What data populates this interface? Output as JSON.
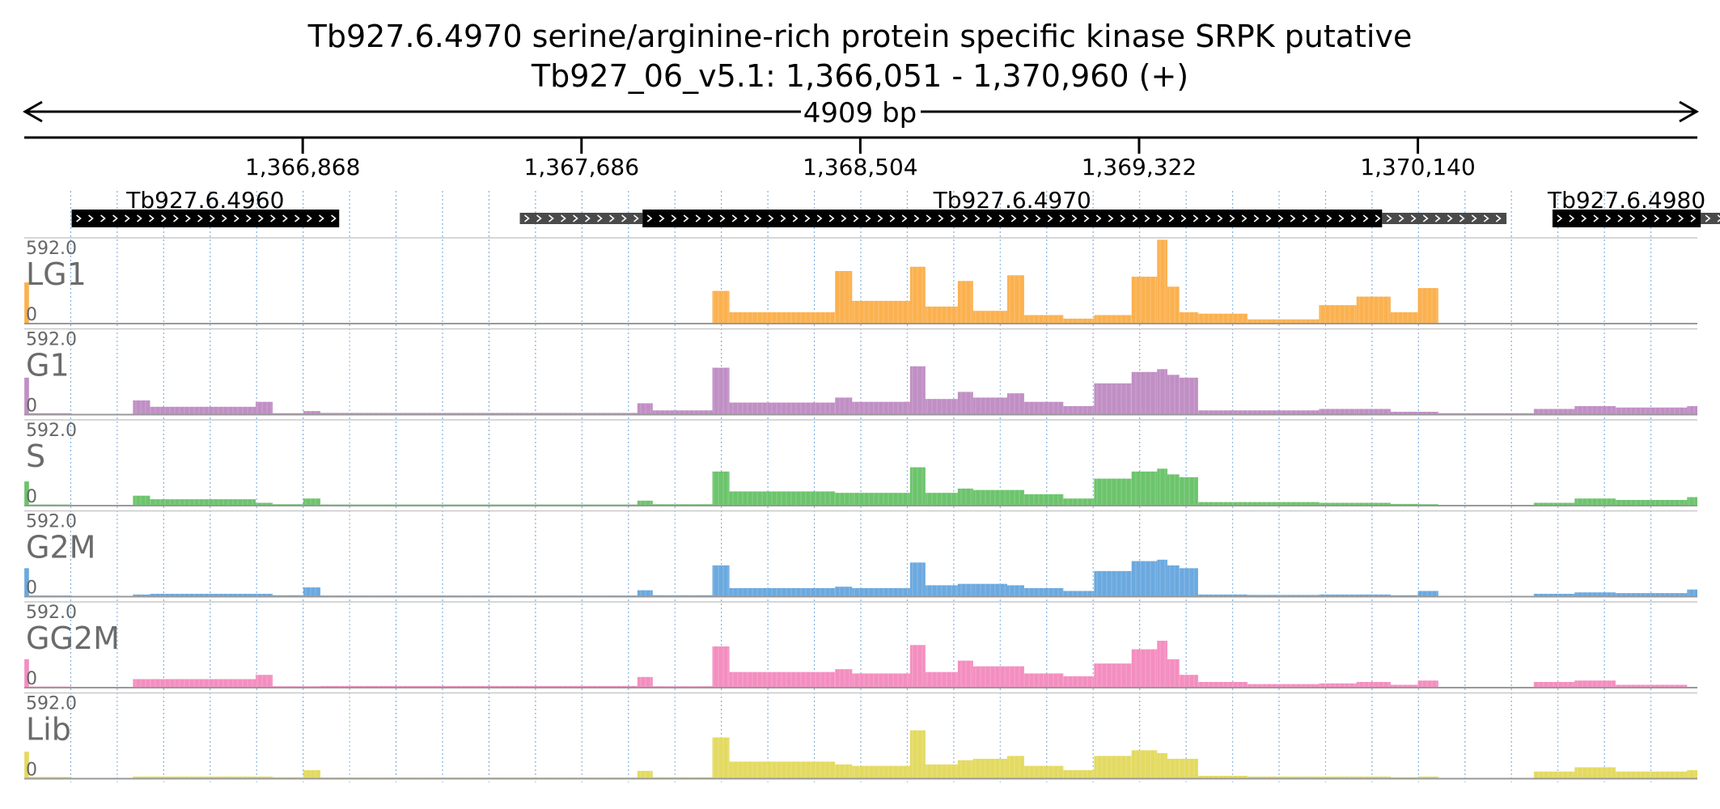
{
  "chart_data": {
    "type": "area",
    "title": "Tb927.6.4970  serine/arginine-rich protein specific kinase SRPK  putative",
    "subtitle": "Tb927_06_v5.1: 1,366,051 - 1,370,960 (+)",
    "span_label": "4909 bp",
    "xlim": [
      1366051,
      1370960
    ],
    "x_ticks": [
      {
        "pos": 1366868,
        "label": "1,366,868"
      },
      {
        "pos": 1367686,
        "label": "1,367,686"
      },
      {
        "pos": 1368504,
        "label": "1,368,504"
      },
      {
        "pos": 1369322,
        "label": "1,369,322"
      },
      {
        "pos": 1370140,
        "label": "1,370,140"
      }
    ],
    "genes": [
      {
        "name": "Tb927.6.4960",
        "cds": [
          1366190,
          1366975
        ],
        "utr": []
      },
      {
        "name": "Tb927.6.4970",
        "cds": [
          1367865,
          1370035
        ],
        "utr": [
          [
            1367505,
            1367865
          ],
          [
            1370035,
            1370400
          ]
        ]
      },
      {
        "name": "Tb927.6.4980",
        "cds": [
          1370535,
          1370970
        ],
        "utr": [
          [
            1370970,
            1371045
          ]
        ]
      }
    ],
    "track_max_label": "592.0",
    "track_min_label": "0",
    "ylim": [
      0,
      592
    ],
    "tracks": [
      {
        "name": "LG1",
        "color": "#fbb14f"
      },
      {
        "name": "G1",
        "color": "#c08fc4"
      },
      {
        "name": "S",
        "color": "#6cc46c"
      },
      {
        "name": "G2M",
        "color": "#6ba9df"
      },
      {
        "name": "GG2M",
        "color": "#f48ec0"
      },
      {
        "name": "Lib",
        "color": "#e3da62"
      }
    ],
    "segments": [
      {
        "x": [
          1366051,
          1366065
        ],
        "v": {
          "LG1": 290,
          "G1": 260,
          "S": 170,
          "G2M": 200,
          "GG2M": 200,
          "Lib": 190
        }
      },
      {
        "x": [
          1366065,
          1366190
        ],
        "v": {
          "LG1": 0,
          "G1": 10,
          "S": 8,
          "G2M": 8,
          "GG2M": 8,
          "Lib": 12
        }
      },
      {
        "x": [
          1366370,
          1366420
        ],
        "v": {
          "LG1": 0,
          "G1": 100,
          "S": 70,
          "G2M": 15,
          "GG2M": 60,
          "Lib": 15
        }
      },
      {
        "x": [
          1366420,
          1366730
        ],
        "v": {
          "LG1": 0,
          "G1": 55,
          "S": 45,
          "G2M": 20,
          "GG2M": 60,
          "Lib": 15
        }
      },
      {
        "x": [
          1366730,
          1366780
        ],
        "v": {
          "LG1": 0,
          "G1": 90,
          "S": 20,
          "G2M": 20,
          "GG2M": 90,
          "Lib": 15
        }
      },
      {
        "x": [
          1366780,
          1366870
        ],
        "v": {
          "LG1": 0,
          "G1": 10,
          "S": 10,
          "G2M": 10,
          "GG2M": 10,
          "Lib": 10
        }
      },
      {
        "x": [
          1366870,
          1366920
        ],
        "v": {
          "LG1": 0,
          "G1": 25,
          "S": 50,
          "G2M": 65,
          "GG2M": 10,
          "Lib": 60
        }
      },
      {
        "x": [
          1366920,
          1367850
        ],
        "v": {
          "LG1": 3,
          "G1": 12,
          "S": 8,
          "G2M": 8,
          "GG2M": 12,
          "Lib": 8
        }
      },
      {
        "x": [
          1367850,
          1367895
        ],
        "v": {
          "LG1": 0,
          "G1": 80,
          "S": 35,
          "G2M": 45,
          "GG2M": 75,
          "Lib": 55
        }
      },
      {
        "x": [
          1367895,
          1368070
        ],
        "v": {
          "LG1": 0,
          "G1": 30,
          "S": 10,
          "G2M": 10,
          "GG2M": 10,
          "Lib": 10
        }
      },
      {
        "x": [
          1368070,
          1368120
        ],
        "v": {
          "LG1": 230,
          "G1": 330,
          "S": 240,
          "G2M": 220,
          "GG2M": 290,
          "Lib": 290
        }
      },
      {
        "x": [
          1368120,
          1368430
        ],
        "v": {
          "LG1": 80,
          "G1": 85,
          "S": 100,
          "G2M": 60,
          "GG2M": 110,
          "Lib": 120
        }
      },
      {
        "x": [
          1368430,
          1368480
        ],
        "v": {
          "LG1": 370,
          "G1": 120,
          "S": 90,
          "G2M": 70,
          "GG2M": 130,
          "Lib": 100
        }
      },
      {
        "x": [
          1368480,
          1368650
        ],
        "v": {
          "LG1": 160,
          "G1": 90,
          "S": 90,
          "G2M": 60,
          "GG2M": 100,
          "Lib": 90
        }
      },
      {
        "x": [
          1368650,
          1368695
        ],
        "v": {
          "LG1": 400,
          "G1": 340,
          "S": 270,
          "G2M": 240,
          "GG2M": 300,
          "Lib": 340
        }
      },
      {
        "x": [
          1368695,
          1368790
        ],
        "v": {
          "LG1": 120,
          "G1": 110,
          "S": 90,
          "G2M": 80,
          "GG2M": 110,
          "Lib": 100
        }
      },
      {
        "x": [
          1368790,
          1368835
        ],
        "v": {
          "LG1": 300,
          "G1": 160,
          "S": 120,
          "G2M": 90,
          "GG2M": 190,
          "Lib": 130
        }
      },
      {
        "x": [
          1368835,
          1368935
        ],
        "v": {
          "LG1": 90,
          "G1": 120,
          "S": 110,
          "G2M": 90,
          "GG2M": 150,
          "Lib": 140
        }
      },
      {
        "x": [
          1368935,
          1368985
        ],
        "v": {
          "LG1": 340,
          "G1": 150,
          "S": 110,
          "G2M": 80,
          "GG2M": 150,
          "Lib": 160
        }
      },
      {
        "x": [
          1368985,
          1369100
        ],
        "v": {
          "LG1": 60,
          "G1": 90,
          "S": 80,
          "G2M": 60,
          "GG2M": 100,
          "Lib": 90
        }
      },
      {
        "x": [
          1369100,
          1369190
        ],
        "v": {
          "LG1": 35,
          "G1": 60,
          "S": 50,
          "G2M": 40,
          "GG2M": 80,
          "Lib": 60
        }
      },
      {
        "x": [
          1369190,
          1369300
        ],
        "v": {
          "LG1": 60,
          "G1": 220,
          "S": 190,
          "G2M": 180,
          "GG2M": 170,
          "Lib": 160
        }
      },
      {
        "x": [
          1369300,
          1369375
        ],
        "v": {
          "LG1": 330,
          "G1": 300,
          "S": 240,
          "G2M": 250,
          "GG2M": 270,
          "Lib": 200
        }
      },
      {
        "x": [
          1369375,
          1369405
        ],
        "v": {
          "LG1": 590,
          "G1": 320,
          "S": 260,
          "G2M": 260,
          "GG2M": 330,
          "Lib": 180
        }
      },
      {
        "x": [
          1369405,
          1369440
        ],
        "v": {
          "LG1": 260,
          "G1": 280,
          "S": 220,
          "G2M": 220,
          "GG2M": 200,
          "Lib": 140
        }
      },
      {
        "x": [
          1369440,
          1369495
        ],
        "v": {
          "LG1": 80,
          "G1": 260,
          "S": 200,
          "G2M": 200,
          "GG2M": 90,
          "Lib": 140
        }
      },
      {
        "x": [
          1369495,
          1369640
        ],
        "v": {
          "LG1": 70,
          "G1": 30,
          "S": 25,
          "G2M": 15,
          "GG2M": 40,
          "Lib": 20
        }
      },
      {
        "x": [
          1369640,
          1369850
        ],
        "v": {
          "LG1": 30,
          "G1": 30,
          "S": 25,
          "G2M": 12,
          "GG2M": 25,
          "Lib": 15
        }
      },
      {
        "x": [
          1369850,
          1369960
        ],
        "v": {
          "LG1": 130,
          "G1": 40,
          "S": 20,
          "G2M": 15,
          "GG2M": 30,
          "Lib": 15
        }
      },
      {
        "x": [
          1369960,
          1370060
        ],
        "v": {
          "LG1": 190,
          "G1": 40,
          "S": 20,
          "G2M": 15,
          "GG2M": 40,
          "Lib": 15
        }
      },
      {
        "x": [
          1370060,
          1370140
        ],
        "v": {
          "LG1": 80,
          "G1": 20,
          "S": 12,
          "G2M": 10,
          "GG2M": 20,
          "Lib": 10
        }
      },
      {
        "x": [
          1370140,
          1370200
        ],
        "v": {
          "LG1": 250,
          "G1": 20,
          "S": 10,
          "G2M": 40,
          "GG2M": 50,
          "Lib": 15
        }
      },
      {
        "x": [
          1370200,
          1370480
        ],
        "v": {
          "LG1": 0,
          "G1": 10,
          "S": 5,
          "G2M": 5,
          "GG2M": 5,
          "Lib": 5
        }
      },
      {
        "x": [
          1370480,
          1370600
        ],
        "v": {
          "LG1": 0,
          "G1": 40,
          "S": 20,
          "G2M": 20,
          "GG2M": 40,
          "Lib": 50
        }
      },
      {
        "x": [
          1370600,
          1370720
        ],
        "v": {
          "LG1": 0,
          "G1": 60,
          "S": 50,
          "G2M": 30,
          "GG2M": 50,
          "Lib": 80
        }
      },
      {
        "x": [
          1370720,
          1370930
        ],
        "v": {
          "LG1": 0,
          "G1": 50,
          "S": 40,
          "G2M": 25,
          "GG2M": 20,
          "Lib": 50
        }
      },
      {
        "x": [
          1370930,
          1370960
        ],
        "v": {
          "LG1": 0,
          "G1": 60,
          "S": 60,
          "G2M": 50,
          "GG2M": 0,
          "Lib": 60
        }
      }
    ]
  }
}
